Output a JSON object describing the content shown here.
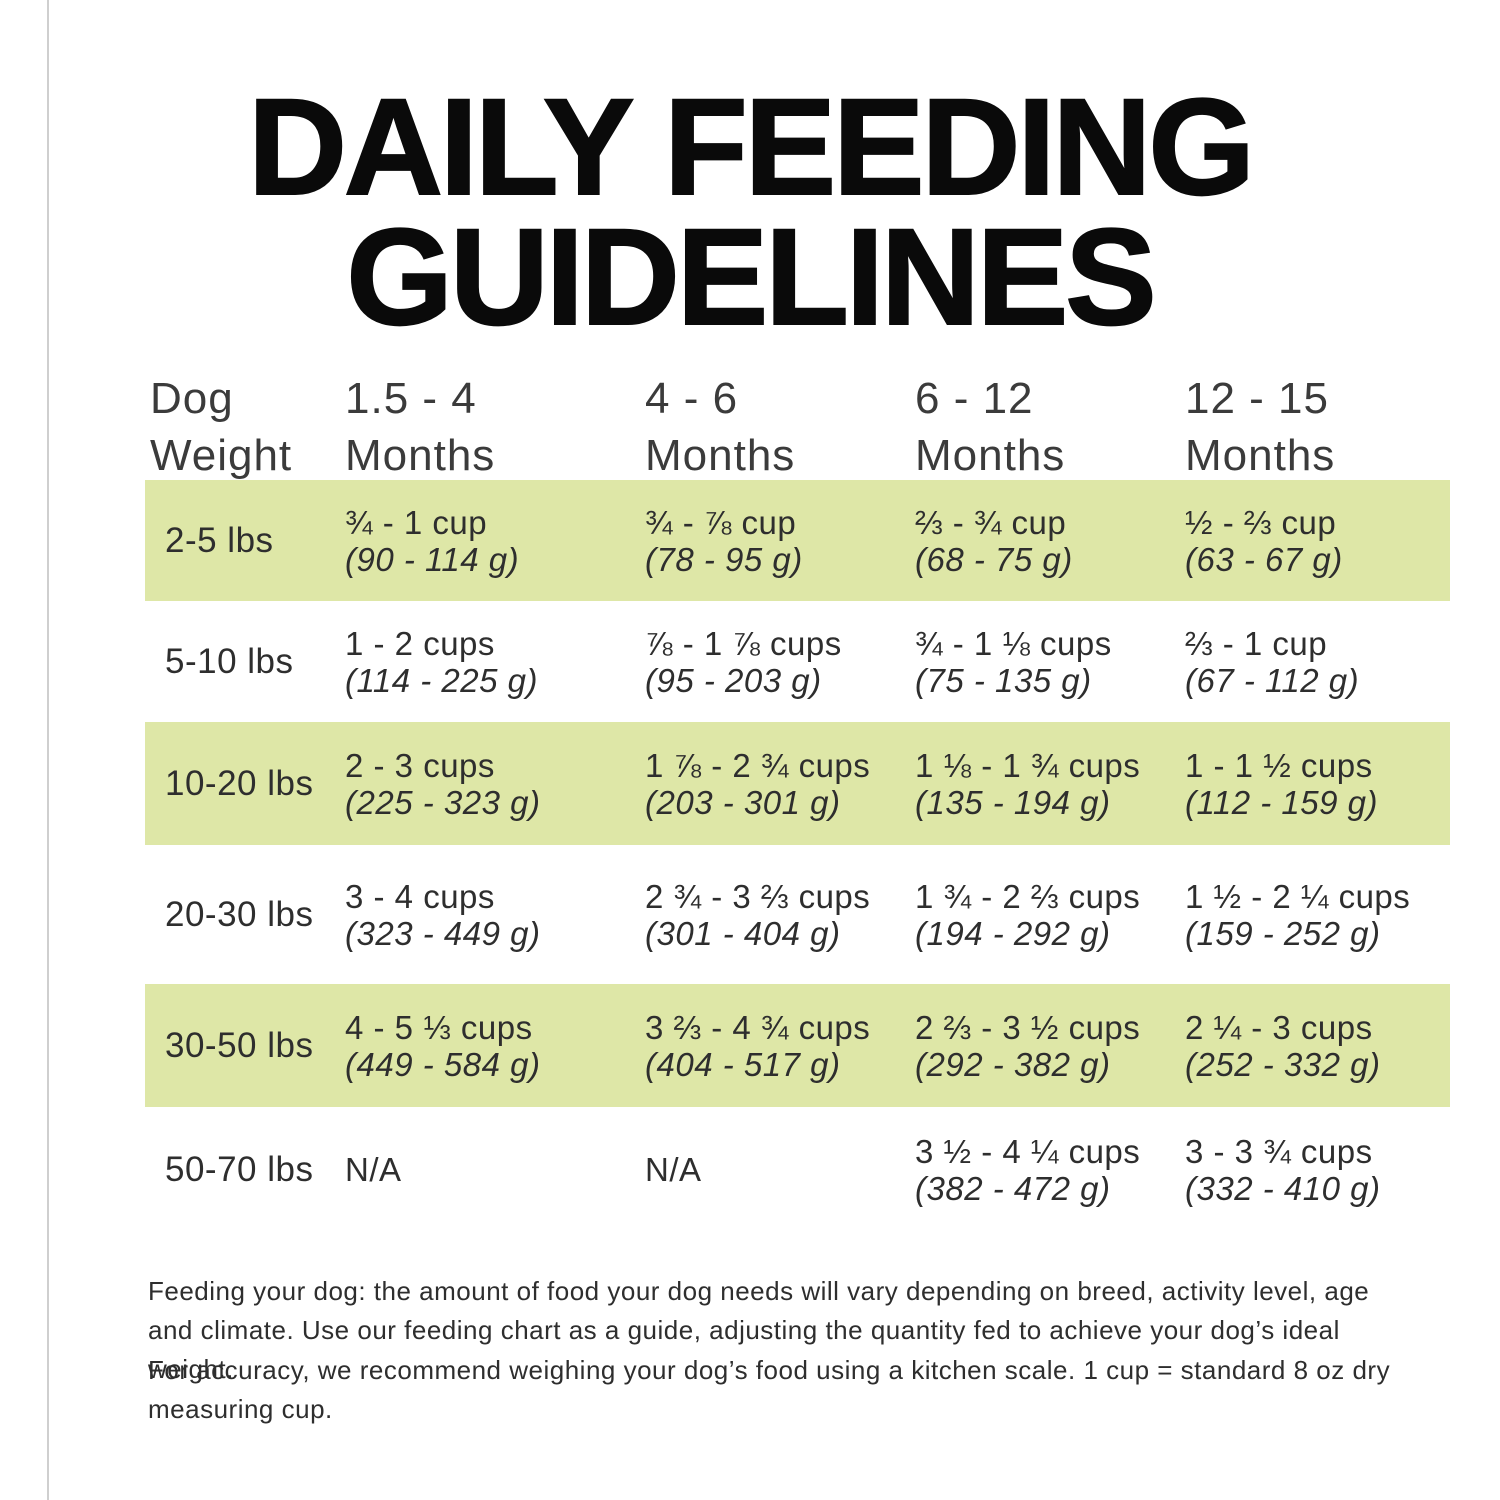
{
  "colors": {
    "background": "#ffffff",
    "highlight_green": "#dee7a7",
    "title_black": "#0a0a0a",
    "text_gray": "#2e2e2e"
  },
  "title": {
    "line1": "DAILY FEEDING",
    "line2": "GUIDELINES"
  },
  "table": {
    "headers": [
      {
        "line1": "Dog",
        "line2": "Weight"
      },
      {
        "line1": "1.5 - 4",
        "line2": "Months"
      },
      {
        "line1": "4 - 6",
        "line2": "Months"
      },
      {
        "line1": "6 - 12",
        "line2": "Months"
      },
      {
        "line1": "12 - 15",
        "line2": "Months"
      }
    ],
    "rows": [
      {
        "weight": "2-5 lbs",
        "highlighted": true,
        "cells": [
          {
            "cups": "¾ - 1 cup",
            "grams": "(90 - 114 g)"
          },
          {
            "cups": "¾ - ⅞ cup",
            "grams": "(78 - 95 g)"
          },
          {
            "cups": "⅔ - ¾ cup",
            "grams": "(68 - 75 g)"
          },
          {
            "cups": "½ - ⅔ cup",
            "grams": "(63 - 67 g)"
          }
        ]
      },
      {
        "weight": "5-10 lbs",
        "highlighted": false,
        "cells": [
          {
            "cups": "1 - 2 cups",
            "grams": "(114 - 225 g)"
          },
          {
            "cups": "⅞ - 1 ⅞ cups",
            "grams": "(95 - 203 g)"
          },
          {
            "cups": "¾ - 1 ⅛ cups",
            "grams": "(75 - 135 g)"
          },
          {
            "cups": "⅔ - 1 cup",
            "grams": "(67 - 112 g)"
          }
        ]
      },
      {
        "weight": "10-20 lbs",
        "highlighted": true,
        "cells": [
          {
            "cups": "2 - 3 cups",
            "grams": "(225 - 323 g)"
          },
          {
            "cups": "1 ⅞ - 2 ¾ cups",
            "grams": "(203 - 301 g)"
          },
          {
            "cups": "1 ⅛ - 1 ¾ cups",
            "grams": "(135 - 194 g)"
          },
          {
            "cups": "1 - 1 ½ cups",
            "grams": "(112 - 159 g)"
          }
        ]
      },
      {
        "weight": "20-30 lbs",
        "highlighted": false,
        "cells": [
          {
            "cups": "3 - 4 cups",
            "grams": "(323 - 449 g)"
          },
          {
            "cups": "2 ¾ - 3 ⅔ cups",
            "grams": "(301 - 404 g)"
          },
          {
            "cups": "1 ¾ - 2 ⅔ cups",
            "grams": "(194 - 292 g)"
          },
          {
            "cups": "1 ½ - 2 ¼ cups",
            "grams": "(159 - 252 g)"
          }
        ]
      },
      {
        "weight": "30-50 lbs",
        "highlighted": true,
        "cells": [
          {
            "cups": "4 - 5 ⅓ cups",
            "grams": "(449 - 584 g)"
          },
          {
            "cups": "3 ⅔ - 4 ¾ cups",
            "grams": "(404 - 517 g)"
          },
          {
            "cups": "2 ⅔ - 3 ½ cups",
            "grams": "(292 - 382 g)"
          },
          {
            "cups": "2 ¼ - 3 cups",
            "grams": "(252 - 332 g)"
          }
        ]
      },
      {
        "weight": "50-70 lbs",
        "highlighted": false,
        "cells": [
          {
            "cups": "N/A",
            "grams": ""
          },
          {
            "cups": "N/A",
            "grams": ""
          },
          {
            "cups": "3 ½ - 4 ¼ cups",
            "grams": "(382 - 472 g)"
          },
          {
            "cups": "3 - 3 ¾ cups",
            "grams": "(332 - 410 g)"
          }
        ]
      }
    ]
  },
  "notes": {
    "para1": "Feeding your dog: the amount of food your dog needs will vary depending on breed, activity level, age and climate. Use our feeding chart as a guide, adjusting the quantity fed to achieve your dog’s ideal weight.",
    "para2": "For accuracy, we recommend weighing your dog’s food using a kitchen scale. 1 cup = standard 8 oz dry measuring cup."
  }
}
